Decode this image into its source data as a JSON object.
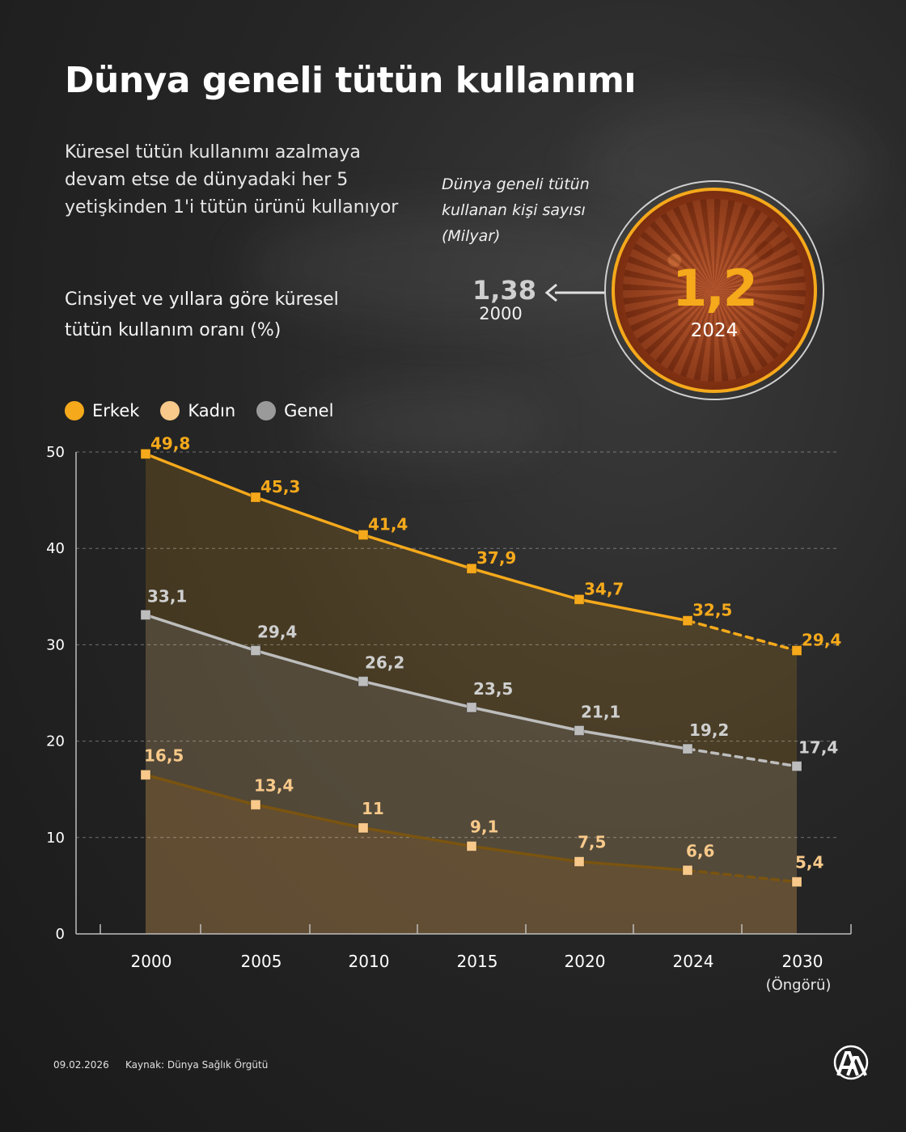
{
  "header": {
    "title": "Dünya geneli tütün kullanımı",
    "subtitle": "Küresel tütün kullanımı azalmaya devam etse de dünyadaki her 5 yetişkinden 1'i tütün ürünü kullanıyor"
  },
  "section": {
    "title": "Cinsiyet ve yıllara göre küresel tütün kullanım oranı (%)"
  },
  "legend": {
    "male": "Erkek",
    "female": "Kadın",
    "total": "Genel"
  },
  "users": {
    "label": "Dünya geneli tütün kullanan kişi sayısı (Milyar)",
    "old_value": "1,38",
    "old_year": "2000",
    "new_value": "1,2",
    "new_year": "2024"
  },
  "colors": {
    "male": "#F5A91B",
    "female": "#F8C98A",
    "total": "#BDBDBD",
    "female_line": "#7A5410"
  },
  "chart_data": {
    "type": "line",
    "title": "Cinsiyet ve yıllara göre küresel tütün kullanım oranı (%)",
    "categories": [
      "2000",
      "2005",
      "2010",
      "2015",
      "2020",
      "2024",
      "2030"
    ],
    "category_notes": [
      "",
      "",
      "",
      "",
      "",
      "",
      "(Öngörü)"
    ],
    "yticks": [
      "0",
      "10",
      "20",
      "30",
      "40",
      "50"
    ],
    "ylim": [
      0,
      50
    ],
    "series": [
      {
        "name": "Erkek",
        "values": [
          49.8,
          45.3,
          41.4,
          37.9,
          34.7,
          32.5,
          29.4
        ],
        "labels": [
          "49,8",
          "45,3",
          "41,4",
          "37,9",
          "34,7",
          "32,5",
          "29,4"
        ]
      },
      {
        "name": "Genel",
        "values": [
          33.1,
          29.4,
          26.2,
          23.5,
          21.1,
          19.2,
          17.4
        ],
        "labels": [
          "33,1",
          "29,4",
          "26,2",
          "23,5",
          "21,1",
          "19,2",
          "17,4"
        ]
      },
      {
        "name": "Kadın",
        "values": [
          16.5,
          13.4,
          11,
          9.1,
          7.5,
          6.6,
          5.4
        ],
        "labels": [
          "16,5",
          "13,4",
          "11",
          "9,1",
          "7,5",
          "6,6",
          "5,4"
        ]
      }
    ],
    "projection_from": "2024"
  },
  "footer": {
    "date": "09.02.2026",
    "source": "Kaynak: Dünya Sağlık Örgütü"
  }
}
